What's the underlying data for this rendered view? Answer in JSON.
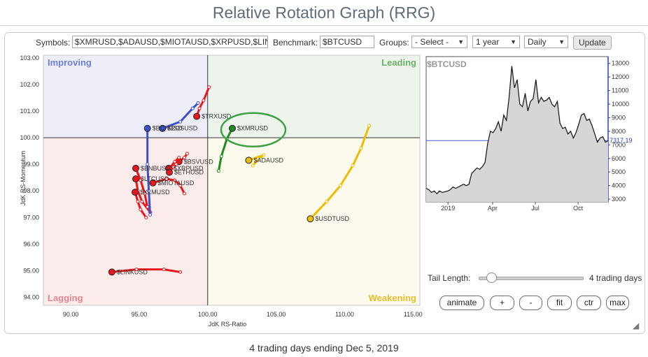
{
  "page": {
    "title": "Relative Rotation Graph (RRG)",
    "caption": "4 trading days ending Dec 5, 2019"
  },
  "toolbar": {
    "symbols_label": "Symbols:",
    "symbols_value": "$XMRUSD,$ADAUSD,$MIOTAUSD,$XRPUSD,$LIN",
    "benchmark_label": "Benchmark:",
    "benchmark_value": "$BTCUSD",
    "groups_label": "Groups:",
    "groups_value": "- Select -",
    "period_value": "1 year",
    "interval_value": "Daily",
    "update_label": "Update"
  },
  "controls": {
    "tail_length_label": "Tail Length:",
    "tail_length_value": "4 trading days",
    "tail_length_days": 4,
    "buttons": [
      "animate",
      "+",
      "-",
      "fit",
      "ctr",
      "max"
    ]
  },
  "chart_data": [
    {
      "type": "scatter",
      "title": "",
      "xlabel": "JdK RS-Ratio",
      "ylabel": "JdK RS-Momentum",
      "xlim": [
        88,
        115.5
      ],
      "ylim": [
        93.7,
        103.1
      ],
      "x_ticks": [
        "90.00",
        "95.00",
        "100.00",
        "105.00",
        "110.00",
        "115.00"
      ],
      "y_ticks": [
        "94.00",
        "95.00",
        "96.00",
        "97.00",
        "98.00",
        "99.00",
        "100.00",
        "101.00",
        "102.00",
        "103.00"
      ],
      "center": [
        100,
        100
      ],
      "quadrants": {
        "improving": {
          "label": "Improving",
          "color": "#6f7fd9"
        },
        "leading": {
          "label": "Leading",
          "color": "#6aaf6a"
        },
        "weakening": {
          "label": "Weakening",
          "color": "#e6be2c"
        },
        "lagging": {
          "label": "Lagging",
          "color": "#e0858f"
        }
      },
      "highlight": {
        "symbol": "$XMRUSD",
        "color": "#3da045"
      },
      "series": [
        {
          "name": "$XMRUSD",
          "color": "#1e8c1e",
          "tail": [
            [
              100.8,
              98.75
            ],
            [
              101.0,
              99.3
            ],
            [
              101.4,
              99.95
            ],
            [
              101.8,
              100.35
            ]
          ]
        },
        {
          "name": "$ADAUSD",
          "color": "#ecbd00",
          "tail": [
            [
              103.3,
              98.95
            ],
            [
              103.7,
              99.2
            ],
            [
              104.1,
              99.35
            ],
            [
              103.0,
              99.15
            ]
          ]
        },
        {
          "name": "$USDTUSD",
          "color": "#ecbd00",
          "tail": [
            [
              111.8,
              100.45
            ],
            [
              111.2,
              99.6
            ],
            [
              110.6,
              98.95
            ],
            [
              109.7,
              98.2
            ],
            [
              108.7,
              97.6
            ],
            [
              107.5,
              96.95
            ]
          ]
        },
        {
          "name": "$TRXUSD",
          "color": "#e8161b",
          "tail": [
            [
              100.1,
              101.9
            ],
            [
              99.7,
              101.4
            ],
            [
              99.4,
              101.1
            ],
            [
              99.2,
              100.8
            ]
          ]
        },
        {
          "name": "$EOSUSD",
          "color": "#3a50cc",
          "tail": [
            [
              99.3,
              101.3
            ],
            [
              98.9,
              101.1
            ],
            [
              98.0,
              100.6
            ],
            [
              96.7,
              100.35
            ]
          ]
        },
        {
          "name": "$BSVUSD",
          "color": "#e8161b",
          "tail": [
            [
              98.5,
              99.4
            ],
            [
              98.3,
              99.25
            ],
            [
              97.9,
              99.1
            ]
          ]
        },
        {
          "name": "$XRPUSD",
          "color": "#e8161b",
          "tail": [
            [
              97.9,
              99.25
            ],
            [
              97.6,
              99.1
            ],
            [
              97.3,
              98.9
            ],
            [
              97.15,
              98.85
            ]
          ]
        },
        {
          "name": "$ETHUSD",
          "color": "#e8161b",
          "tail": [
            [
              97.7,
              99.0
            ],
            [
              97.5,
              98.9
            ],
            [
              97.2,
              98.7
            ]
          ]
        },
        {
          "name": "$MIOTAUSD",
          "color": "#e8161b",
          "tail": [
            [
              98.3,
              97.9
            ],
            [
              98.0,
              98.2
            ],
            [
              97.6,
              98.4
            ],
            [
              97.0,
              98.45
            ],
            [
              96.0,
              98.3
            ]
          ]
        },
        {
          "name": "$LTCUSD",
          "color": "#e8161b",
          "tail": [
            [
              95.8,
              97.2
            ],
            [
              95.2,
              97.6
            ],
            [
              94.9,
              98.0
            ],
            [
              94.75,
              98.45
            ]
          ]
        },
        {
          "name": "$XLMUSD",
          "color": "#e8161b",
          "tail": [
            [
              95.5,
              97.0
            ],
            [
              95.1,
              97.3
            ],
            [
              94.9,
              97.6
            ],
            [
              94.7,
              97.95
            ]
          ]
        },
        {
          "name": "$BNBUSD",
          "color": "#e8161b",
          "tail": [
            [
              95.6,
              97.4
            ],
            [
              95.4,
              97.9
            ],
            [
              95.1,
              98.4
            ],
            [
              94.75,
              98.85
            ]
          ]
        },
        {
          "name": "$BCHUSD",
          "color": "#3a50cc",
          "tail": [
            [
              95.8,
              97.1
            ],
            [
              95.7,
              98.0
            ],
            [
              95.6,
              99.0
            ],
            [
              95.6,
              100.35
            ]
          ]
        },
        {
          "name": "$LINKUSD",
          "color": "#e8161b",
          "tail": [
            [
              98.0,
              94.95
            ],
            [
              96.8,
              95.05
            ],
            [
              94.8,
              95.05
            ],
            [
              93.0,
              94.95
            ]
          ]
        }
      ]
    },
    {
      "type": "area",
      "title": "$BTCUSD",
      "x_ticks": [
        "2019",
        "Apr",
        "Jul",
        "Oct"
      ],
      "y_ticks": [
        "3000",
        "4000",
        "5000",
        "6000",
        "7000",
        "8000",
        "9000",
        "10000",
        "11000",
        "12000",
        "13000"
      ],
      "ylim": [
        2800,
        13500
      ],
      "last_value": "7317.19",
      "x": [
        0,
        5,
        10,
        15,
        20,
        25,
        30,
        35,
        40,
        45,
        50,
        55,
        60,
        65,
        70,
        75,
        80,
        85,
        90,
        95,
        100,
        105,
        110,
        115,
        120,
        125,
        130,
        135,
        140,
        145,
        150,
        155,
        160,
        165,
        170,
        175,
        180,
        185,
        190,
        195,
        200,
        205,
        210,
        215,
        220,
        225,
        230,
        235,
        240,
        245,
        250,
        255,
        260,
        265,
        270,
        275,
        280,
        285,
        290,
        295,
        300,
        305,
        310,
        315,
        320,
        325,
        330,
        335,
        340
      ],
      "values": [
        3800,
        3700,
        3500,
        3600,
        3400,
        3600,
        3500,
        3550,
        3600,
        3700,
        3900,
        3800,
        3900,
        4000,
        4100,
        4000,
        4100,
        4900,
        5100,
        5300,
        5200,
        5400,
        5700,
        7100,
        8000,
        7900,
        8200,
        8700,
        8000,
        9200,
        8800,
        10500,
        12800,
        11200,
        11800,
        10000,
        9800,
        10800,
        9500,
        10200,
        10400,
        11800,
        10100,
        10500,
        10200,
        10300,
        10500,
        10000,
        9800,
        10200,
        8600,
        8200,
        8300,
        7800,
        8000,
        7500,
        7900,
        8500,
        9200,
        9300,
        8800,
        8900,
        8400,
        7800,
        7200,
        7500,
        7600,
        7200,
        7300
      ]
    }
  ]
}
